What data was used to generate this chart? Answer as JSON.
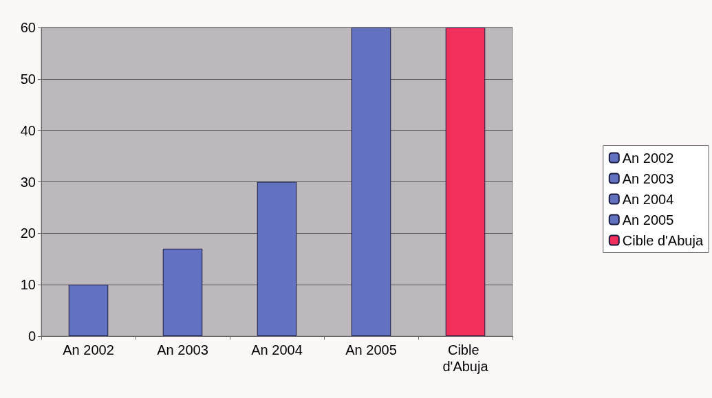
{
  "chart_data": {
    "type": "bar",
    "categories": [
      "An 2002",
      "An 2003",
      "An 2004",
      "An 2005",
      "Cible d'Abuja"
    ],
    "series": [
      {
        "name": "An 2002",
        "color": "#6272c0",
        "values": [
          10,
          null,
          null,
          null,
          null
        ]
      },
      {
        "name": "An 2003",
        "color": "#6272c0",
        "values": [
          null,
          17,
          null,
          null,
          null
        ]
      },
      {
        "name": "An 2004",
        "color": "#6272c0",
        "values": [
          null,
          null,
          30,
          null,
          null
        ]
      },
      {
        "name": "An 2005",
        "color": "#6272c0",
        "values": [
          null,
          null,
          null,
          60,
          null
        ]
      },
      {
        "name": "Cible d'Abuja",
        "color": "#f0305a",
        "values": [
          null,
          null,
          null,
          null,
          60
        ]
      }
    ],
    "stacked": true,
    "ylim": [
      0,
      60
    ],
    "yticks": [
      0,
      10,
      20,
      30,
      40,
      50,
      60
    ],
    "grid": "y",
    "legend": "right"
  }
}
